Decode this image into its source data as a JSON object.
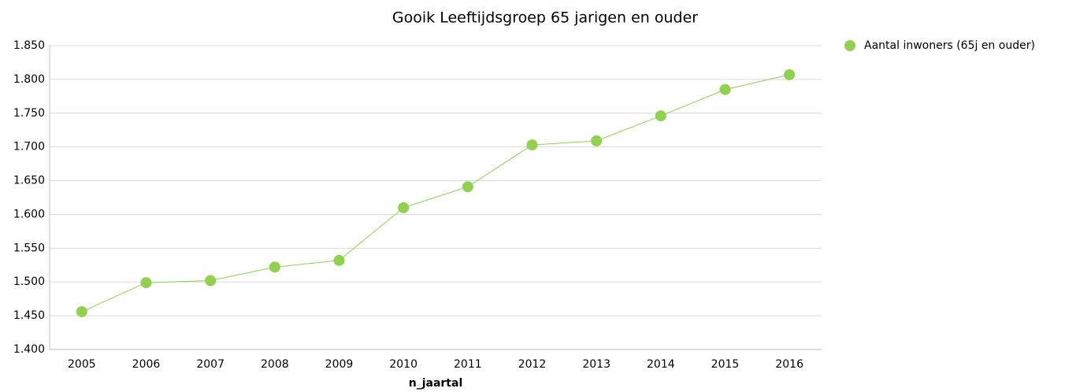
{
  "chart_data": {
    "type": "line",
    "title": "Gooik  Leeftijdsgroep 65 jarigen en ouder",
    "x_label": "n_jaartal",
    "categories": [
      "2005",
      "2006",
      "2007",
      "2008",
      "2009",
      "2010",
      "2011",
      "2012",
      "2013",
      "2014",
      "2015",
      "2016"
    ],
    "series": [
      {
        "name": "Aantal inwoners (65j en ouder)",
        "color": "#92d050",
        "values": [
          1456,
          1499,
          1502,
          1522,
          1532,
          1610,
          1641,
          1703,
          1709,
          1746,
          1785,
          1807
        ]
      }
    ],
    "ylim": [
      1400,
      1850
    ],
    "yticks": [
      {
        "value": 1400,
        "label": "1.400"
      },
      {
        "value": 1450,
        "label": "1.450"
      },
      {
        "value": 1500,
        "label": "1.500"
      },
      {
        "value": 1550,
        "label": "1.550"
      },
      {
        "value": 1600,
        "label": "1.600"
      },
      {
        "value": 1650,
        "label": "1.650"
      },
      {
        "value": 1700,
        "label": "1.700"
      },
      {
        "value": 1750,
        "label": "1.750"
      },
      {
        "value": 1800,
        "label": "1.800"
      },
      {
        "value": 1850,
        "label": "1.850"
      }
    ],
    "grid": true,
    "legend": "top-right"
  }
}
